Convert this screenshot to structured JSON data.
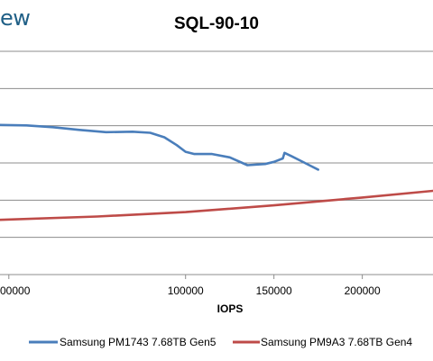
{
  "brand_text": "ew",
  "chart_data": {
    "type": "line",
    "title": "SQL-90-10",
    "xlabel": "IOPS",
    "ylabel": "",
    "xlim": [
      -5000,
      240000
    ],
    "x_ticks": [
      0,
      100000,
      150000,
      200000
    ],
    "x_tick_labels": [
      "00000",
      "100000",
      "150000",
      "200000"
    ],
    "grid": true,
    "legend_position": "bottom",
    "series": [
      {
        "name": "Samsung PM1743 7.68TB Gen5",
        "color": "#4a7ebb",
        "x": [
          -5000,
          10000,
          25000,
          40000,
          55000,
          70000,
          80000,
          88000,
          95000,
          100000,
          105000,
          115000,
          125000,
          135000,
          145000,
          150000,
          155000,
          156000,
          160000,
          165000,
          170000,
          175000
        ],
        "y": [
          0.67,
          0.668,
          0.66,
          0.648,
          0.638,
          0.64,
          0.635,
          0.615,
          0.58,
          0.55,
          0.54,
          0.54,
          0.525,
          0.49,
          0.495,
          0.505,
          0.52,
          0.545,
          0.53,
          0.51,
          0.49,
          0.47
        ]
      },
      {
        "name": "Samsung PM9A3 7.68TB Gen4",
        "color": "#be4b48",
        "x": [
          -5000,
          50000,
          100000,
          150000,
          200000,
          240000
        ],
        "y": [
          0.245,
          0.26,
          0.28,
          0.31,
          0.345,
          0.375
        ]
      }
    ]
  }
}
